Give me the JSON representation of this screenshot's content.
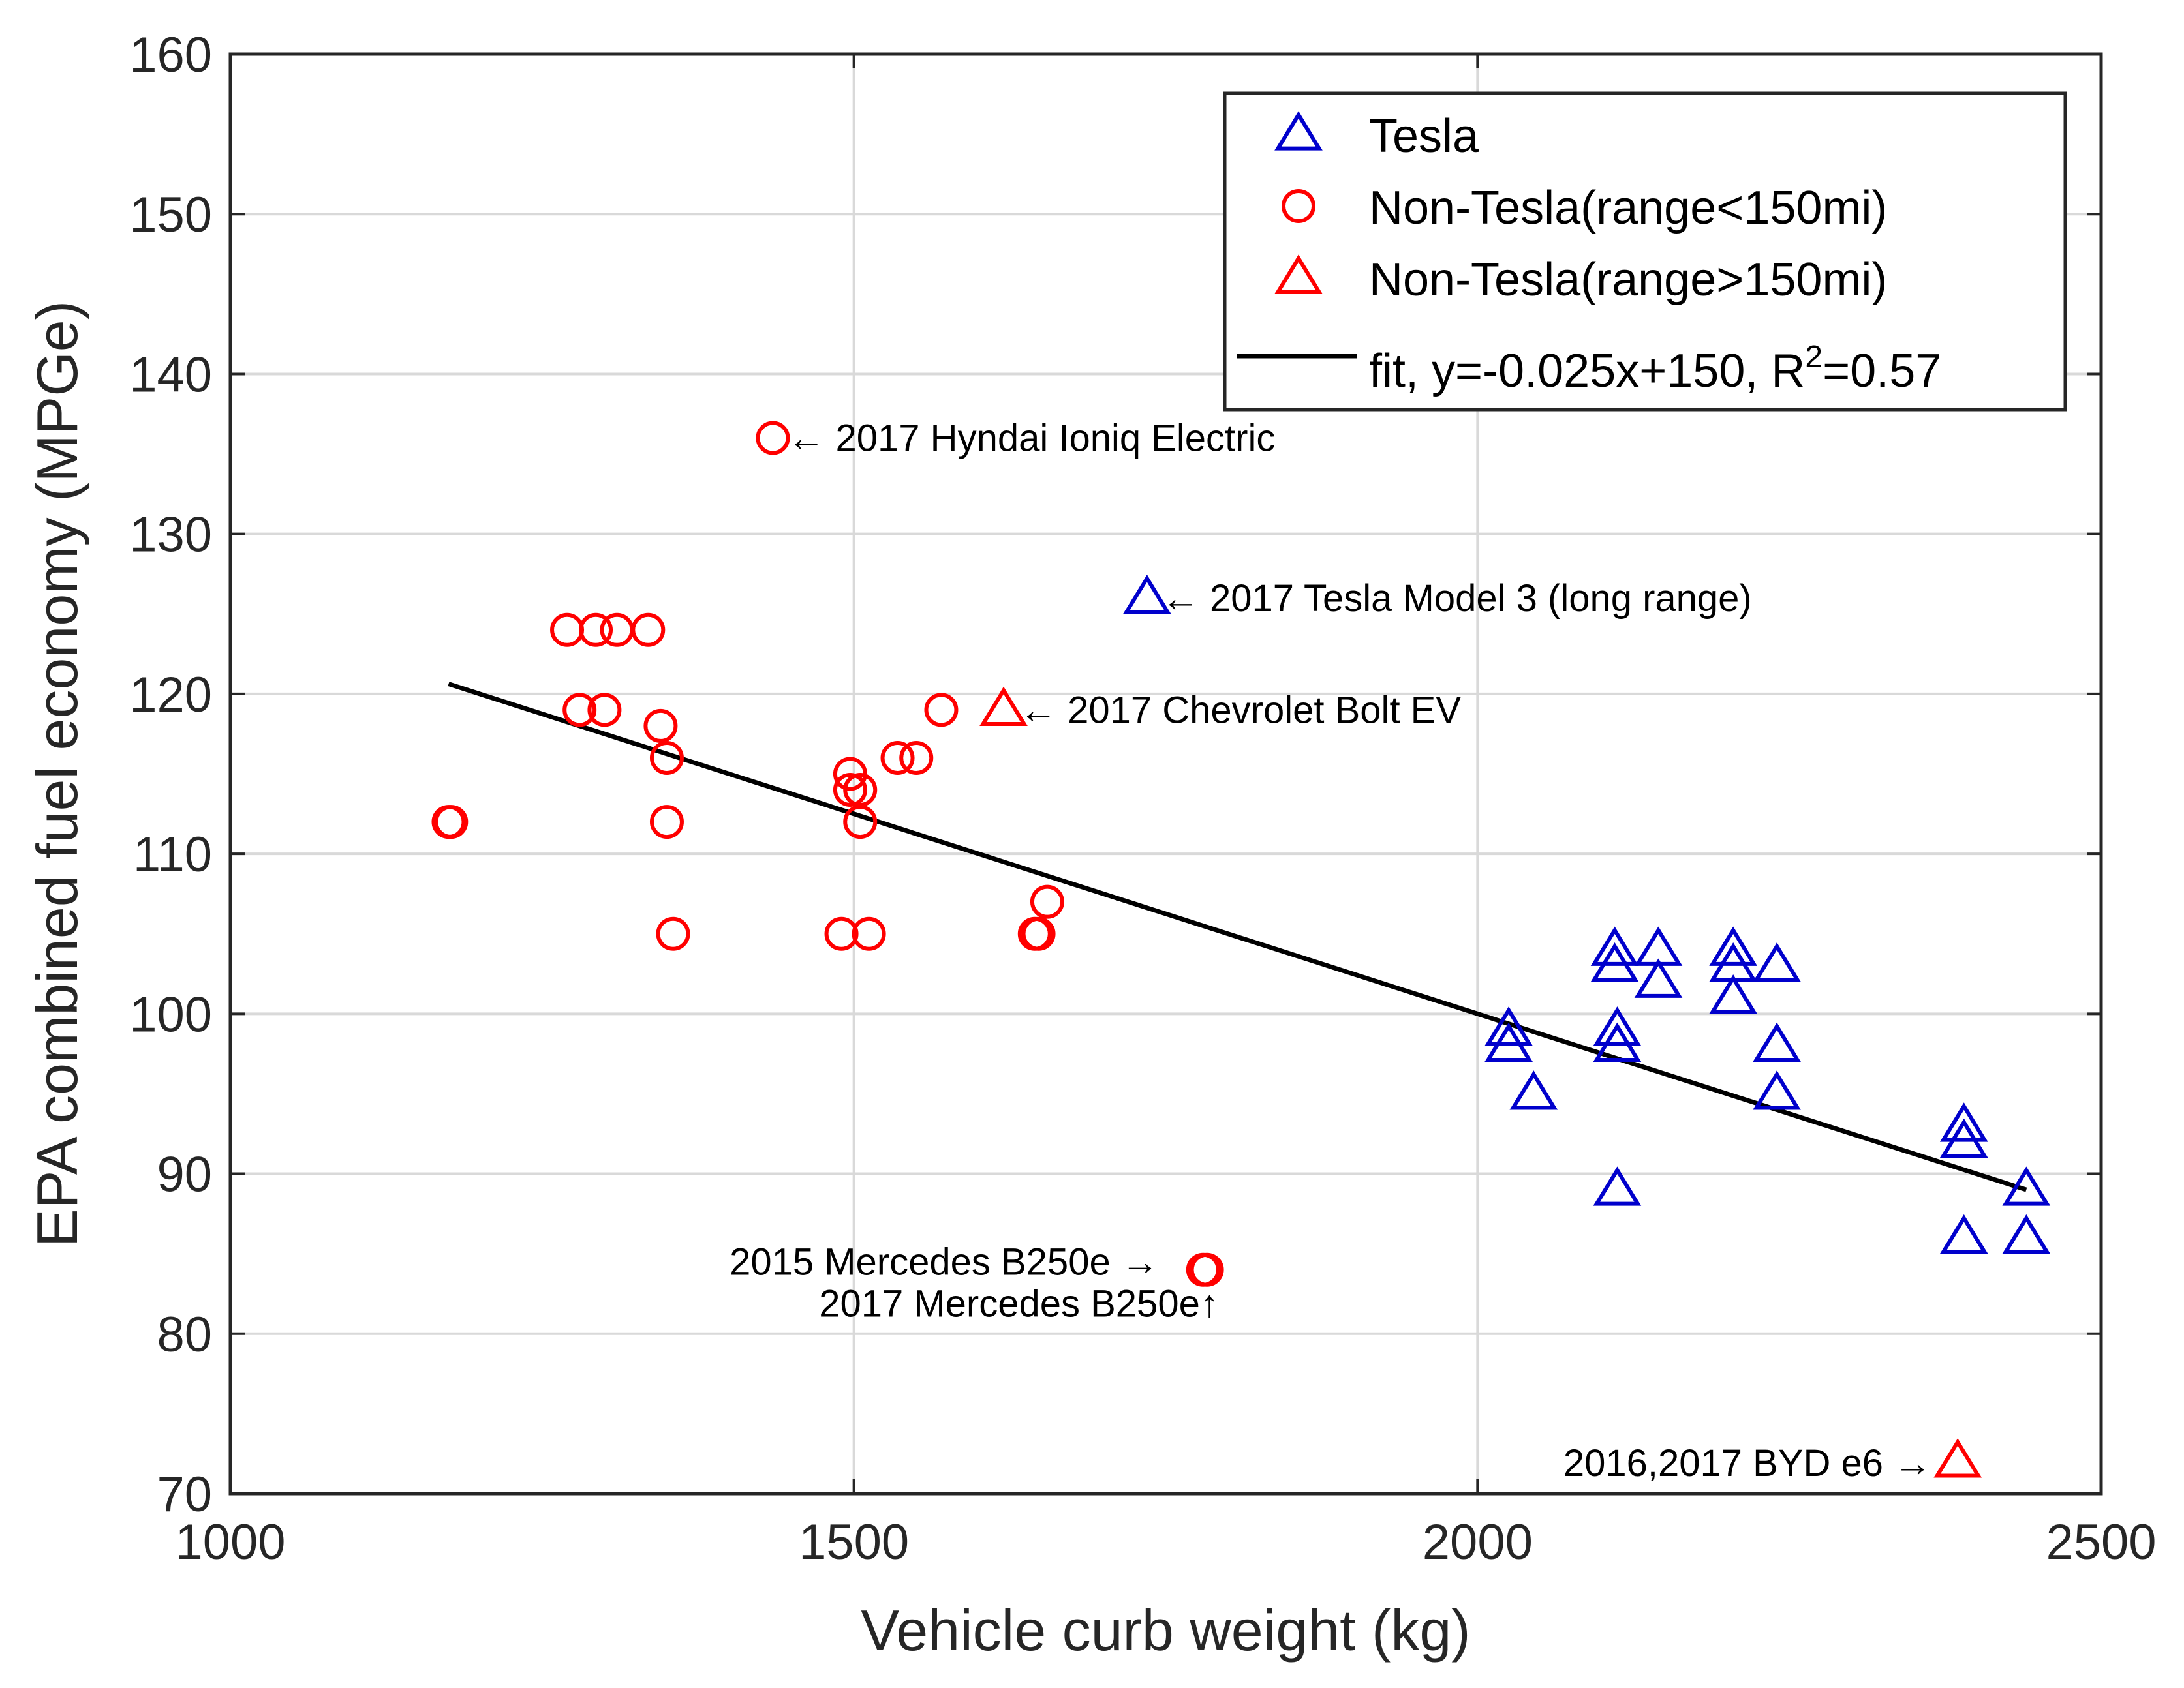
{
  "chart_data": {
    "type": "scatter",
    "title": "",
    "xlabel": "Vehicle curb weight (kg)",
    "ylabel": "EPA combined fuel economy (MPGe)",
    "xlim": [
      1000,
      2500
    ],
    "ylim": [
      70,
      160
    ],
    "xticks": [
      1000,
      1500,
      2000,
      2500
    ],
    "yticks": [
      70,
      80,
      90,
      100,
      110,
      120,
      130,
      140,
      150,
      160
    ],
    "grid": true,
    "legend_position": "top-right",
    "colors": {
      "tesla": "#0000CC",
      "non_tesla": "#FF0000",
      "fit": "#000000"
    },
    "series": [
      {
        "name": "Tesla",
        "marker": "triangle",
        "color": "#0000CC",
        "points": [
          [
            1735,
            126
          ],
          [
            2025,
            99
          ],
          [
            2025,
            98
          ],
          [
            2045,
            95
          ],
          [
            2110,
            104
          ],
          [
            2110,
            103
          ],
          [
            2112,
            99
          ],
          [
            2112,
            98
          ],
          [
            2112,
            89
          ],
          [
            2145,
            104
          ],
          [
            2145,
            102
          ],
          [
            2205,
            104
          ],
          [
            2205,
            103
          ],
          [
            2205,
            101
          ],
          [
            2240,
            103
          ],
          [
            2240,
            98
          ],
          [
            2240,
            95
          ],
          [
            2390,
            93
          ],
          [
            2390,
            92
          ],
          [
            2390,
            86
          ],
          [
            2440,
            89
          ],
          [
            2440,
            86
          ]
        ]
      },
      {
        "name": "Non-Tesla(range<150mi)",
        "marker": "circle",
        "color": "#FF0000",
        "points": [
          [
            1175,
            112
          ],
          [
            1177,
            112
          ],
          [
            1270,
            124
          ],
          [
            1293,
            124
          ],
          [
            1310,
            124
          ],
          [
            1335,
            124
          ],
          [
            1280,
            119
          ],
          [
            1300,
            119
          ],
          [
            1345,
            118
          ],
          [
            1350,
            116
          ],
          [
            1350,
            112
          ],
          [
            1355,
            105
          ],
          [
            1435,
            136
          ],
          [
            1490,
            105
          ],
          [
            1497,
            115
          ],
          [
            1497,
            114
          ],
          [
            1505,
            114
          ],
          [
            1505,
            112
          ],
          [
            1512,
            105
          ],
          [
            1535,
            116
          ],
          [
            1550,
            116
          ],
          [
            1570,
            119
          ],
          [
            1645,
            105
          ],
          [
            1648,
            105
          ],
          [
            1655,
            107
          ],
          [
            1780,
            84
          ],
          [
            1783,
            84
          ]
        ]
      },
      {
        "name": "Non-Tesla(range>150mi)",
        "marker": "triangle",
        "color": "#FF0000",
        "points": [
          [
            1620,
            119
          ],
          [
            2385,
            72
          ]
        ]
      }
    ],
    "fit": {
      "label": "fit, y=-0.025x+150, R",
      "superscript": "2",
      "label_suffix": "=0.57",
      "slope": -0.025,
      "intercept": 150,
      "r2": 0.57,
      "x_start": 1175,
      "x_end": 2440
    },
    "annotations": [
      {
        "text": "← 2017 Hyndai Ioniq Electric",
        "x": 1435,
        "y": 136
      },
      {
        "text": "← 2017 Tesla Model 3 (long range)",
        "x": 1735,
        "y": 126
      },
      {
        "text": "← 2017 Chevrolet Bolt EV",
        "x": 1620,
        "y": 119
      },
      {
        "text": "2015 Mercedes B250e →",
        "x": 1780,
        "y": 84
      },
      {
        "text": "2017 Mercedes B250e↑",
        "x": 1780,
        "y": 84
      },
      {
        "text": "2016,2017 BYD e6 →",
        "x": 2385,
        "y": 72
      }
    ]
  }
}
